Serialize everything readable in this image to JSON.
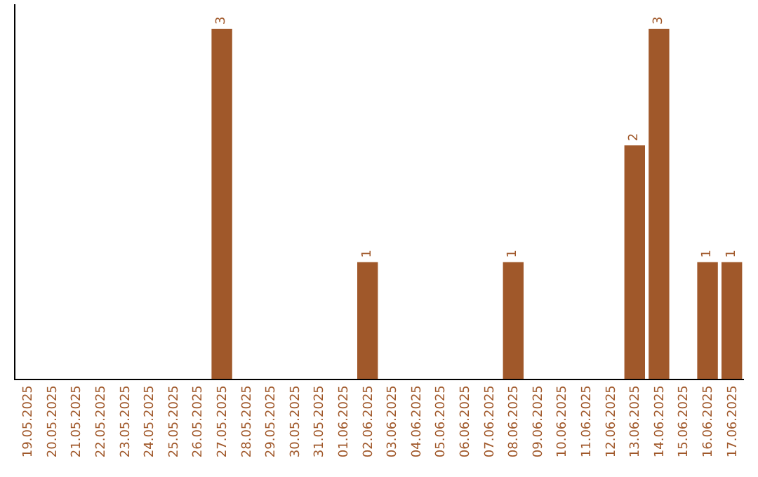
{
  "chart_data": {
    "type": "bar",
    "categories": [
      "19.05.2025",
      "20.05.2025",
      "21.05.2025",
      "22.05.2025",
      "23.05.2025",
      "24.05.2025",
      "25.05.2025",
      "26.05.2025",
      "27.05.2025",
      "28.05.2025",
      "29.05.2025",
      "30.05.2025",
      "31.05.2025",
      "01.06.2025",
      "02.06.2025",
      "03.06.2025",
      "04.06.2025",
      "05.06.2025",
      "06.06.2025",
      "07.06.2025",
      "08.06.2025",
      "09.06.2025",
      "10.06.2025",
      "11.06.2025",
      "12.06.2025",
      "13.06.2025",
      "14.06.2025",
      "15.06.2025",
      "16.06.2025",
      "17.06.2025"
    ],
    "values": [
      null,
      null,
      null,
      null,
      null,
      null,
      null,
      null,
      3,
      null,
      null,
      null,
      null,
      null,
      1,
      null,
      null,
      null,
      null,
      null,
      1,
      null,
      null,
      null,
      null,
      2,
      3,
      null,
      1,
      1
    ],
    "color": "#a0582a",
    "data_labels": true
  }
}
